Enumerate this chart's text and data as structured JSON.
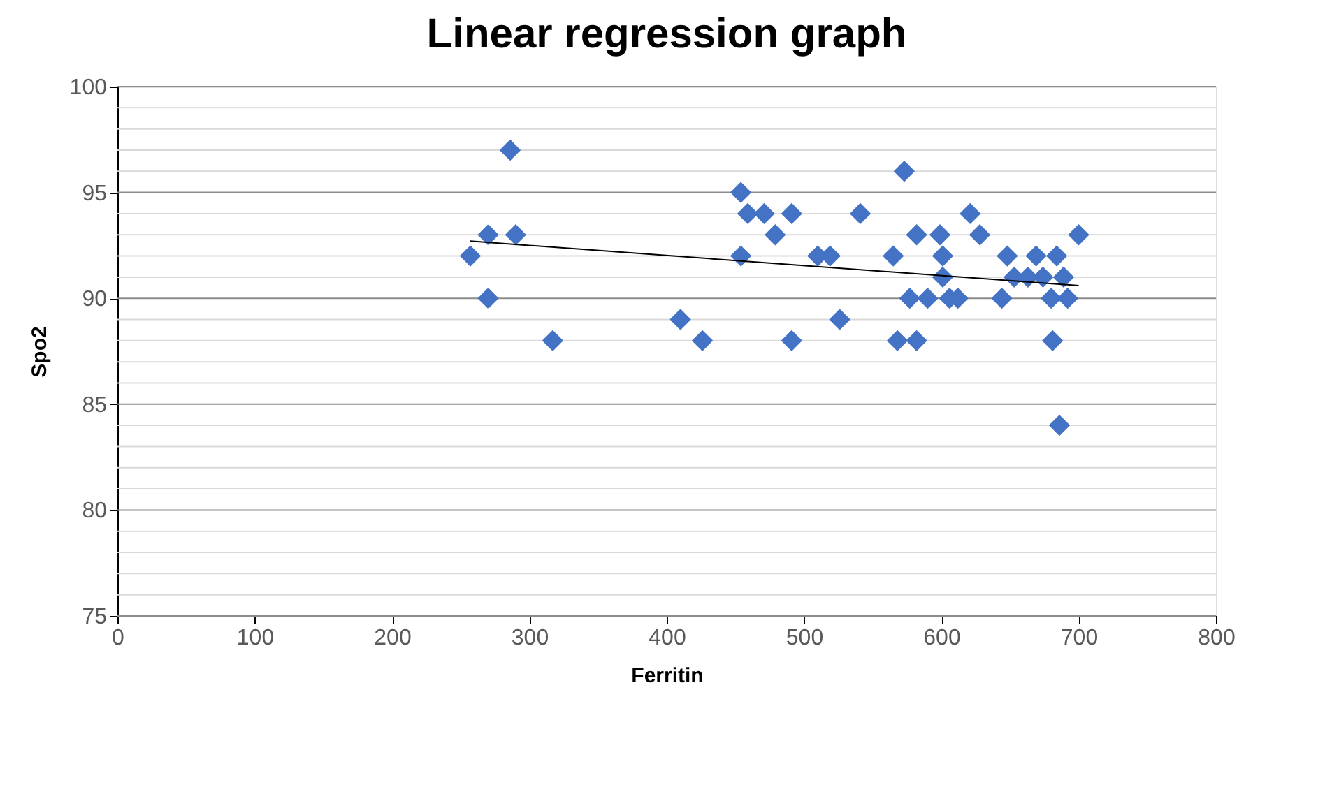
{
  "chart_data": {
    "type": "scatter",
    "title": "Linear regression graph",
    "xlabel": "Ferritin",
    "ylabel": "Spo2",
    "xlim": [
      0,
      800
    ],
    "xticks": [
      0,
      100,
      200,
      300,
      400,
      500,
      600,
      700,
      800
    ],
    "ylim": [
      75,
      100
    ],
    "yticks": [
      75,
      {
        "value": 76,
        "label": null
      },
      {
        "value": 77,
        "label": null
      },
      {
        "value": 78,
        "label": null
      },
      {
        "value": 79,
        "label": null
      },
      80,
      {
        "value": 81,
        "label": null
      },
      {
        "value": 82,
        "label": null
      },
      {
        "value": 83,
        "label": null
      },
      {
        "value": 84,
        "label": null
      },
      85,
      {
        "value": 86,
        "label": null
      },
      {
        "value": 87,
        "label": null
      },
      {
        "value": 88,
        "label": null
      },
      {
        "value": 89,
        "label": null
      },
      90,
      {
        "value": 91,
        "label": null
      },
      {
        "value": 92,
        "label": null
      },
      {
        "value": 93,
        "label": null
      },
      {
        "value": 94,
        "label": null
      },
      95,
      {
        "value": 96,
        "label": null
      },
      {
        "value": 97,
        "label": null
      },
      {
        "value": 98,
        "label": null
      },
      {
        "value": 99,
        "label": null
      },
      100
    ],
    "grid": "y",
    "marker": "diamond",
    "series": [
      {
        "color": "#4472c4",
        "x": [
          257,
          270,
          270,
          286,
          290,
          317,
          410,
          426,
          454,
          459,
          454,
          471,
          479,
          491,
          491,
          510,
          519,
          526,
          541,
          565,
          573,
          568,
          577,
          582,
          582,
          590,
          599,
          601,
          601,
          606,
          612,
          621,
          628,
          648,
          644,
          653,
          669,
          663,
          674,
          684,
          689,
          680,
          692,
          681,
          700,
          686
        ],
        "values": [
          92,
          93,
          90,
          97,
          93,
          88,
          89,
          88,
          95,
          94,
          92,
          94,
          93,
          94,
          88,
          92,
          92,
          89,
          94,
          92,
          96,
          88,
          90,
          88,
          93,
          90,
          93,
          92,
          91,
          90,
          90,
          94,
          93,
          92,
          90,
          91,
          92,
          91,
          91,
          92,
          91,
          90,
          90,
          88,
          93,
          84
        ]
      },
      {
        "type": "line",
        "color": "#000000",
        "marker": "none",
        "x": [
          257,
          700
        ],
        "values": [
          92.7,
          90.6
        ]
      }
    ]
  }
}
